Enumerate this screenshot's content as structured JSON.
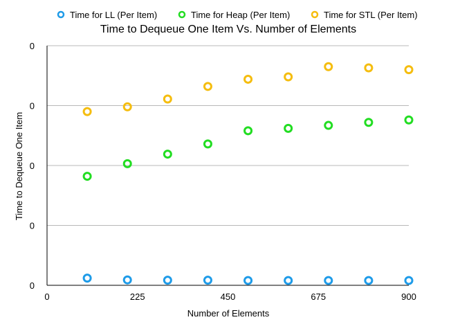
{
  "chart_data": {
    "type": "scatter",
    "title": "Time to Dequeue One Item Vs. Number of Elements",
    "xlabel": "Number of Elements",
    "ylabel": "Time to Dequeue One Item",
    "xlim": [
      0,
      900
    ],
    "ylim": [
      0,
      4
    ],
    "x_ticks": [
      "0",
      "225",
      "450",
      "675",
      "900"
    ],
    "y_ticks": [
      "0",
      "0",
      "0",
      "0",
      "0"
    ],
    "grid": "horizontal",
    "legend_position": "top",
    "series": [
      {
        "name": "Time for LL (Per Item)",
        "color": "#1e9be8",
        "x": [
          100,
          200,
          300,
          400,
          500,
          600,
          700,
          800,
          900
        ],
        "y": [
          0.12,
          0.09,
          0.085,
          0.085,
          0.08,
          0.08,
          0.08,
          0.08,
          0.08
        ]
      },
      {
        "name": "Time for Heap (Per Item)",
        "color": "#22dd22",
        "x": [
          100,
          200,
          300,
          400,
          500,
          600,
          700,
          800,
          900
        ],
        "y": [
          1.82,
          2.03,
          2.19,
          2.36,
          2.58,
          2.62,
          2.67,
          2.72,
          2.76
        ]
      },
      {
        "name": "Time for STL (Per Item)",
        "color": "#f5bd0f",
        "x": [
          100,
          200,
          300,
          400,
          500,
          600,
          700,
          800,
          900
        ],
        "y": [
          2.9,
          2.98,
          3.11,
          3.32,
          3.44,
          3.48,
          3.65,
          3.63,
          3.6
        ]
      }
    ]
  }
}
